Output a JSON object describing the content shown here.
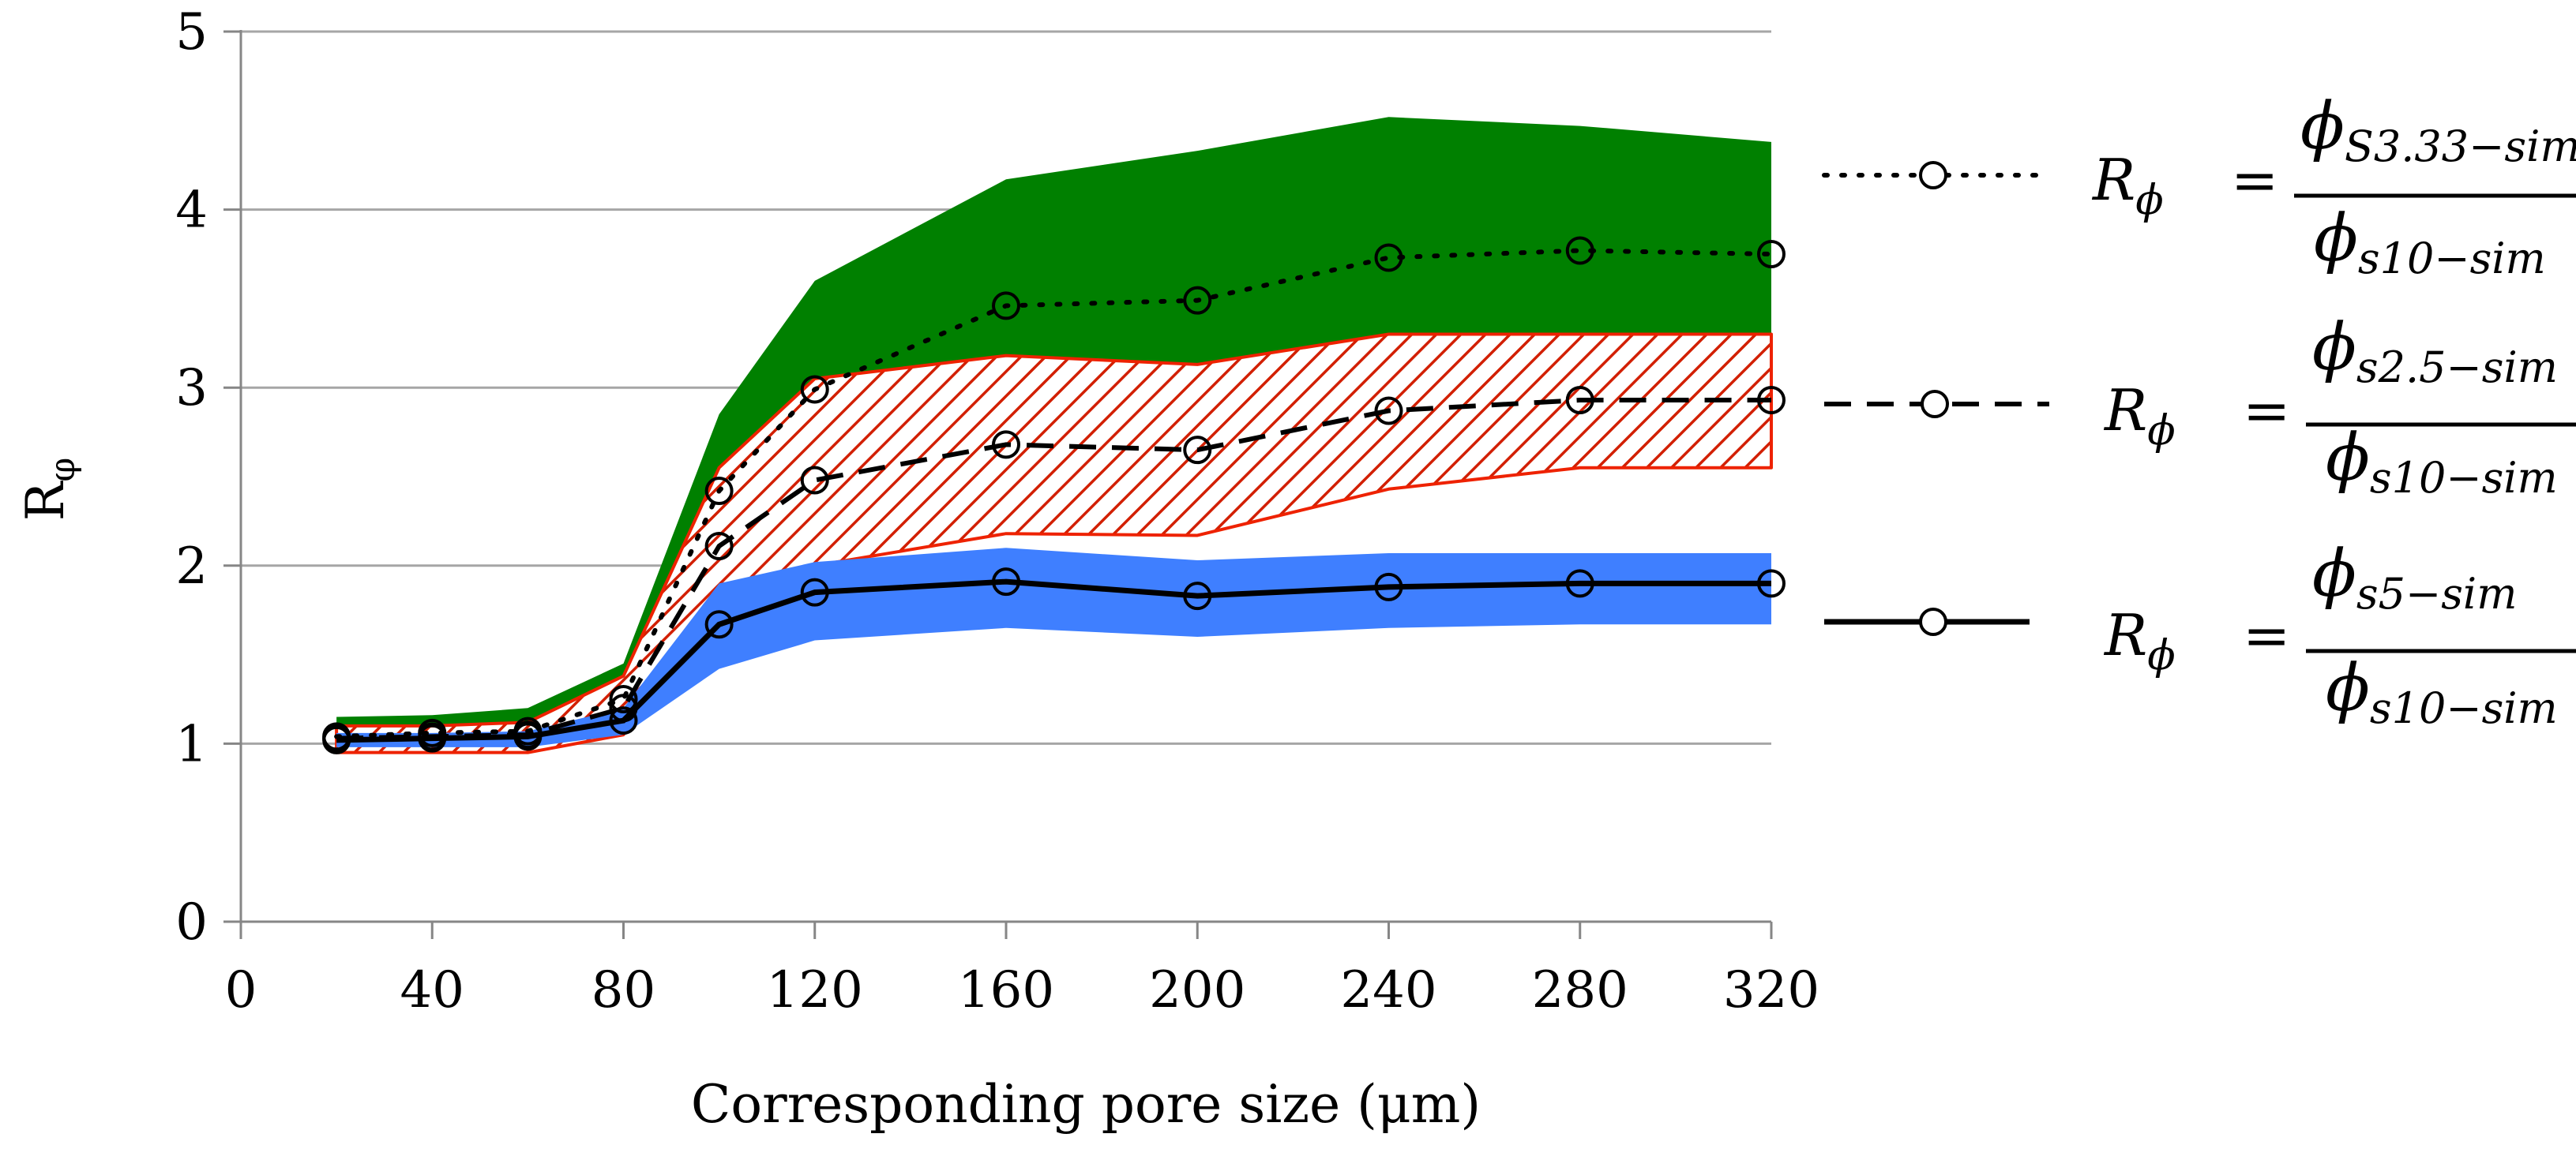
{
  "chart_data": {
    "type": "line",
    "title": "",
    "xlabel": "Corresponding pore size (μm)",
    "ylabel_main": "R",
    "ylabel_sub": "φ",
    "xlim": [
      0,
      320
    ],
    "ylim": [
      0,
      5
    ],
    "x_ticks": [
      "0",
      "40",
      "80",
      "120",
      "160",
      "200",
      "240",
      "280",
      "320"
    ],
    "y_ticks": [
      "0",
      "1",
      "2",
      "3",
      "4",
      "5"
    ],
    "grid": "horizontal",
    "x": [
      20,
      40,
      60,
      80,
      100,
      120,
      160,
      200,
      240,
      280,
      320
    ],
    "series": [
      {
        "name": "phi_S3.33-sim / phi_s10-sim",
        "style": "dotted",
        "values": [
          1.04,
          1.06,
          1.07,
          1.25,
          2.42,
          2.99,
          3.46,
          3.49,
          3.73,
          3.77,
          3.75
        ],
        "band_lower": [
          1.0,
          1.0,
          1.0,
          1.15,
          2.0,
          2.45,
          2.75,
          2.72,
          3.0,
          3.15,
          3.28
        ],
        "band_upper": [
          1.15,
          1.16,
          1.2,
          1.45,
          2.85,
          3.6,
          4.17,
          4.33,
          4.52,
          4.47,
          4.38
        ],
        "band_color": "#008000",
        "band_fill": "solid"
      },
      {
        "name": "phi_s2.5-sim / phi_s10-sim",
        "style": "dashed",
        "values": [
          1.03,
          1.04,
          1.05,
          1.2,
          2.11,
          2.48,
          2.68,
          2.65,
          2.87,
          2.93,
          2.93
        ],
        "band_lower": [
          0.95,
          0.95,
          0.95,
          1.05,
          1.78,
          2.0,
          2.18,
          2.17,
          2.43,
          2.55,
          2.55
        ],
        "band_upper": [
          1.1,
          1.1,
          1.12,
          1.38,
          2.55,
          3.05,
          3.18,
          3.13,
          3.3,
          3.3,
          3.3
        ],
        "band_color": "#ee2200",
        "band_fill": "hatched"
      },
      {
        "name": "phi_s5-sim / phi_s10-sim",
        "style": "solid",
        "values": [
          1.02,
          1.03,
          1.04,
          1.13,
          1.67,
          1.85,
          1.91,
          1.83,
          1.88,
          1.9,
          1.9
        ],
        "band_lower": [
          0.98,
          0.98,
          0.98,
          1.05,
          1.42,
          1.58,
          1.65,
          1.6,
          1.65,
          1.67,
          1.67
        ],
        "band_upper": [
          1.06,
          1.06,
          1.07,
          1.2,
          1.9,
          2.02,
          2.1,
          2.03,
          2.07,
          2.07,
          2.07
        ],
        "band_color": "#3f7fff",
        "band_fill": "solid"
      }
    ],
    "legend": [
      {
        "lhs": "R",
        "lhs_sub": "ϕ",
        "eq": "=",
        "num": "ϕ",
        "num_sub": "S3.33−sim",
        "den": "ϕ",
        "den_sub": "s10−sim"
      },
      {
        "lhs": "R",
        "lhs_sub": "ϕ",
        "eq": "=",
        "num": "ϕ",
        "num_sub": "s2.5−sim",
        "den": "ϕ",
        "den_sub": "s10−sim"
      },
      {
        "lhs": "R",
        "lhs_sub": "ϕ",
        "eq": "=",
        "num": "ϕ",
        "num_sub": "s5−sim",
        "den": "ϕ",
        "den_sub": "s10−sim"
      }
    ],
    "legend_position": "right"
  }
}
